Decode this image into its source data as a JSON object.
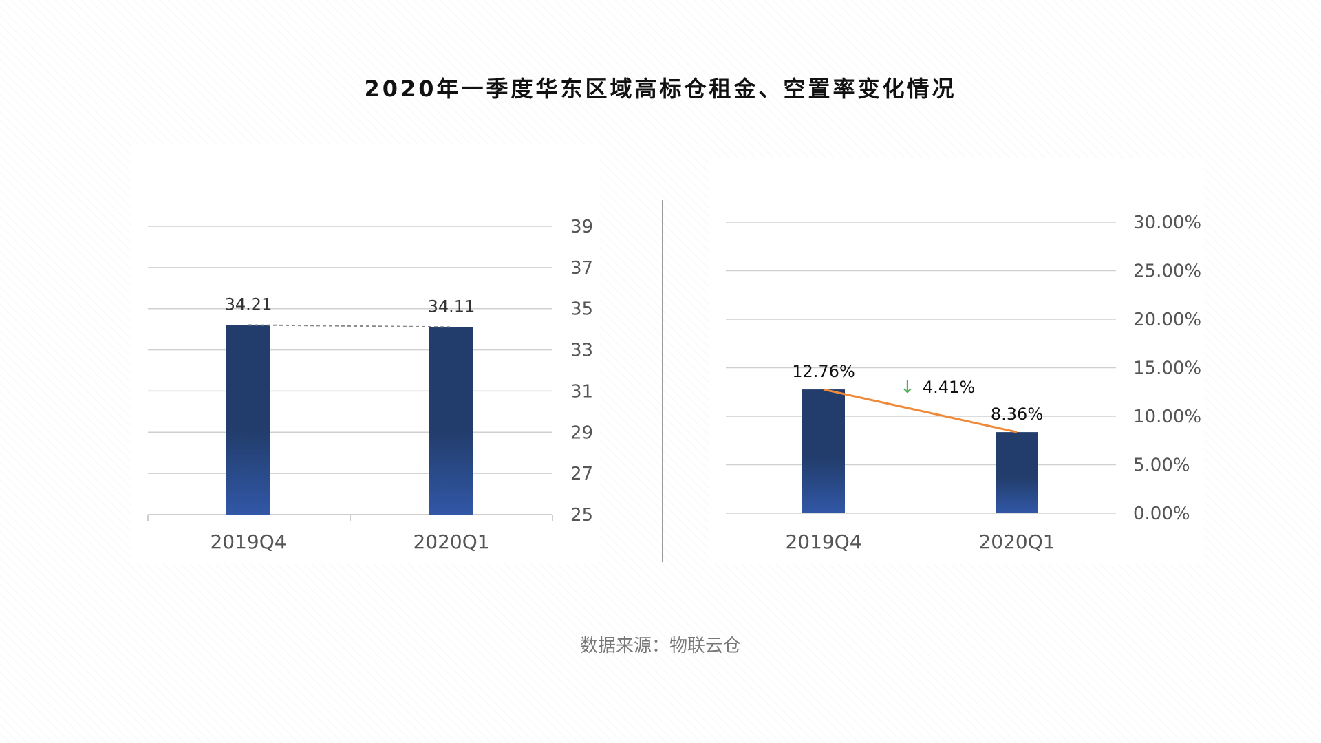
{
  "title": "2020年一季度华东区域高标仓租金、空置率变化情况",
  "source": "数据来源：物联云仓",
  "colors": {
    "bar_top": "#223d6b",
    "bar_bottom": "#3157a6",
    "line": "#ee8a3a",
    "rent_connector": "#8a8a8a",
    "grid": "#d0d0d0",
    "down_arrow": "#4caf50"
  },
  "chart_data": [
    {
      "type": "bar",
      "categories": [
        "2019Q4",
        "2020Q1"
      ],
      "values": [
        34.21,
        34.11
      ],
      "data_labels": [
        "34.21",
        "34.11"
      ],
      "ylim": [
        25,
        39
      ],
      "yticks": [
        "25",
        "27",
        "29",
        "31",
        "33",
        "35",
        "37",
        "39"
      ],
      "y_axis_side": "right",
      "grid": true,
      "connector": "dashed"
    },
    {
      "type": "bar",
      "categories": [
        "2019Q4",
        "2020Q1"
      ],
      "values": [
        12.76,
        8.36
      ],
      "data_labels": [
        "12.76%",
        "8.36%"
      ],
      "ylim": [
        0,
        30
      ],
      "yticks": [
        "0.00%",
        "5.00%",
        "10.00%",
        "15.00%",
        "20.00%",
        "25.00%",
        "30.00%"
      ],
      "y_axis_side": "right",
      "grid": true,
      "overlay_line": true,
      "change": {
        "arrow": "↓",
        "text": "4.41%"
      }
    }
  ]
}
